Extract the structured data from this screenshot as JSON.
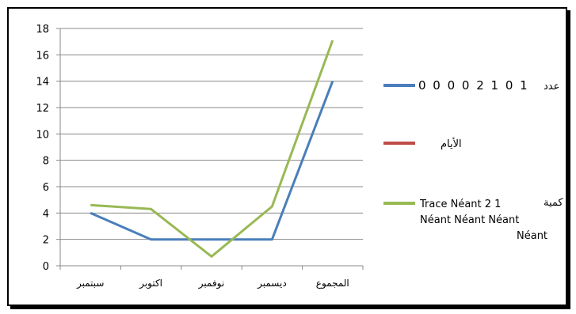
{
  "colors": {
    "background": "#ffffff",
    "frame": "#000000",
    "grid": "#888888",
    "axis": "#888888"
  },
  "chart_data": {
    "type": "line",
    "title": "",
    "xlabel": "",
    "ylabel": "",
    "categories": [
      "سبتمبر",
      "اكتوبر",
      "نوفمبر",
      "ديسمبر",
      "المجموع"
    ],
    "ylim": [
      0,
      18
    ],
    "yticks": [
      0,
      2,
      4,
      6,
      8,
      10,
      12,
      14,
      16,
      18
    ],
    "grid": true,
    "legend_position": "right",
    "series": [
      {
        "name": "عدد 00002101",
        "color": "#4a7ebb",
        "values": [
          4,
          2,
          2,
          2,
          14
        ]
      },
      {
        "name": "الأيام",
        "color": "#be4b48",
        "values": [
          null,
          null,
          null,
          null,
          null
        ]
      },
      {
        "name": "كمية Trace Néant 2 1 Néant Néant Néant Néant",
        "color": "#98b954",
        "values": [
          4.6,
          4.3,
          0.7,
          4.5,
          17.1
        ]
      }
    ],
    "legend": {
      "entry1_text": "0 0 0 0 2 1 0 1",
      "entry1_prefix": "عدد",
      "entry2_text": "الأيام",
      "entry3_prefix": "كمية",
      "entry3_line1": "Trace Néant 2 1",
      "entry3_line2": "Néant Néant Néant",
      "entry3_line3": "Néant"
    }
  }
}
